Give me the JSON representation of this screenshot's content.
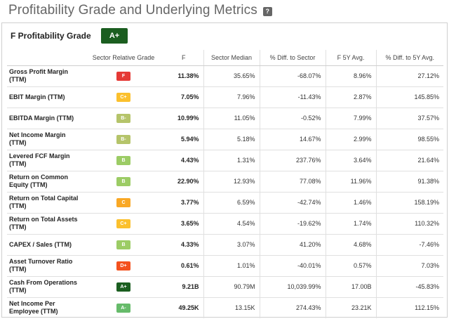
{
  "page": {
    "title": "Profitability Grade and Underlying Metrics",
    "help_icon": "?"
  },
  "grade_header": {
    "label": "F Profitability Grade",
    "grade": "A+",
    "grade_color": "#1b5e20"
  },
  "table": {
    "headers": [
      "",
      "Sector Relative Grade",
      "F",
      "Sector Median",
      "% Diff. to Sector",
      "F 5Y Avg.",
      "% Diff. to 5Y Avg."
    ],
    "grade_colors": {
      "F": "#e53935",
      "D+": "#f4511e",
      "C": "#f9a825",
      "C+": "#fbc02d",
      "B-": "#b5c46a",
      "B": "#9ccc65",
      "A-": "#66bb6a",
      "A+": "#1b5e20"
    },
    "rows": [
      {
        "metric": "Gross Profit Margin (TTM)",
        "grade": "F",
        "f": "11.38%",
        "sector_median": "35.65%",
        "diff_sector": "-68.07%",
        "avg5y": "8.96%",
        "diff_5y": "27.12%"
      },
      {
        "metric": "EBIT Margin (TTM)",
        "grade": "C+",
        "f": "7.05%",
        "sector_median": "7.96%",
        "diff_sector": "-11.43%",
        "avg5y": "2.87%",
        "diff_5y": "145.85%"
      },
      {
        "metric": "EBITDA Margin (TTM)",
        "grade": "B-",
        "f": "10.99%",
        "sector_median": "11.05%",
        "diff_sector": "-0.52%",
        "avg5y": "7.99%",
        "diff_5y": "37.57%"
      },
      {
        "metric": "Net Income Margin (TTM)",
        "grade": "B-",
        "f": "5.94%",
        "sector_median": "5.18%",
        "diff_sector": "14.67%",
        "avg5y": "2.99%",
        "diff_5y": "98.55%"
      },
      {
        "metric": "Levered FCF Margin (TTM)",
        "grade": "B",
        "f": "4.43%",
        "sector_median": "1.31%",
        "diff_sector": "237.76%",
        "avg5y": "3.64%",
        "diff_5y": "21.64%"
      },
      {
        "metric": "Return on Common Equity (TTM)",
        "grade": "B",
        "f": "22.90%",
        "sector_median": "12.93%",
        "diff_sector": "77.08%",
        "avg5y": "11.96%",
        "diff_5y": "91.38%"
      },
      {
        "metric": "Return on Total Capital (TTM)",
        "grade": "C",
        "f": "3.77%",
        "sector_median": "6.59%",
        "diff_sector": "-42.74%",
        "avg5y": "1.46%",
        "diff_5y": "158.19%"
      },
      {
        "metric": "Return on Total Assets (TTM)",
        "grade": "C+",
        "f": "3.65%",
        "sector_median": "4.54%",
        "diff_sector": "-19.62%",
        "avg5y": "1.74%",
        "diff_5y": "110.32%"
      },
      {
        "metric": "CAPEX / Sales (TTM)",
        "grade": "B",
        "f": "4.33%",
        "sector_median": "3.07%",
        "diff_sector": "41.20%",
        "avg5y": "4.68%",
        "diff_5y": "-7.46%"
      },
      {
        "metric": "Asset Turnover Ratio (TTM)",
        "grade": "D+",
        "f": "0.61%",
        "sector_median": "1.01%",
        "diff_sector": "-40.01%",
        "avg5y": "0.57%",
        "diff_5y": "7.03%"
      },
      {
        "metric": "Cash From Operations (TTM)",
        "grade": "A+",
        "f": "9.21B",
        "sector_median": "90.79M",
        "diff_sector": "10,039.99%",
        "avg5y": "17.00B",
        "diff_5y": "-45.83%"
      },
      {
        "metric": "Net Income Per Employee (TTM)",
        "grade": "A-",
        "f": "49.25K",
        "sector_median": "13.15K",
        "diff_sector": "274.43%",
        "avg5y": "23.21K",
        "diff_5y": "112.15%"
      }
    ]
  }
}
